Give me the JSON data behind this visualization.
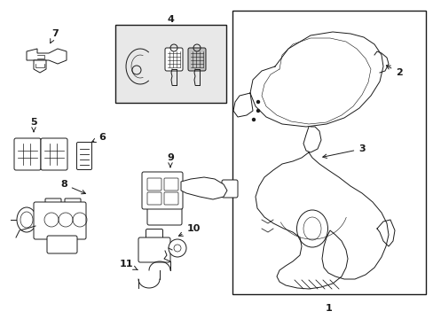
{
  "bg_color": "#ffffff",
  "box_bg": "#e8e8e8",
  "line_color": "#1a1a1a",
  "fig_width": 4.89,
  "fig_height": 3.6,
  "dpi": 100
}
